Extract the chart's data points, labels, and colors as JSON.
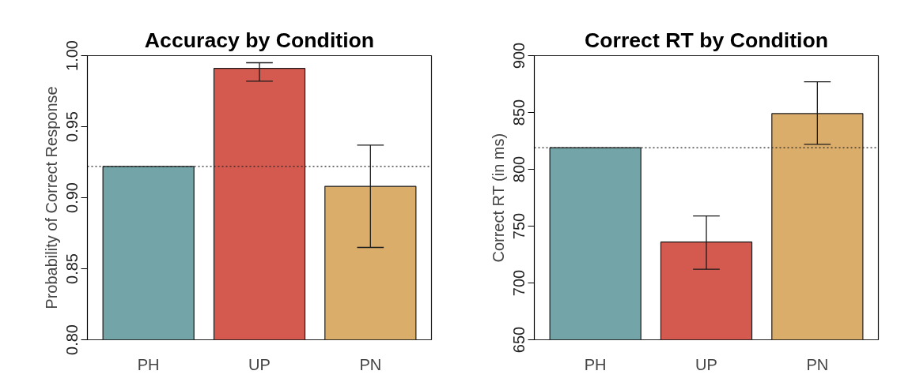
{
  "chart_data": [
    {
      "type": "bar",
      "title": "Accuracy by Condition",
      "ylabel": "Probability of Correct Response",
      "categories": [
        "PH",
        "UP",
        "PN"
      ],
      "values": [
        0.922,
        0.991,
        0.908
      ],
      "colors": [
        "#72a4a8",
        "#d45a50",
        "#dbad6a"
      ],
      "errors": [
        null,
        [
          0.982,
          0.995
        ],
        [
          0.865,
          0.937
        ]
      ],
      "ylim": [
        0.8,
        1.0
      ],
      "yticks": [
        {
          "value": 0.8,
          "label": "0.80"
        },
        {
          "value": 0.85,
          "label": "0.85"
        },
        {
          "value": 0.9,
          "label": "0.90"
        },
        {
          "value": 0.95,
          "label": "0.95"
        },
        {
          "value": 1.0,
          "label": "1.00"
        }
      ],
      "ref_lines": [
        {
          "axis": "y",
          "value": 0.922,
          "line_style": "dotted"
        }
      ],
      "grid": false
    },
    {
      "type": "bar",
      "title": "Correct RT by Condition",
      "ylabel": "Correct RT (in ms)",
      "categories": [
        "PH",
        "UP",
        "PN"
      ],
      "values": [
        819,
        736,
        849
      ],
      "colors": [
        "#72a4a8",
        "#d45a50",
        "#dbad6a"
      ],
      "errors": [
        null,
        [
          712,
          759
        ],
        [
          822,
          877
        ]
      ],
      "ylim": [
        650,
        900
      ],
      "yticks": [
        650,
        700,
        750,
        800,
        850,
        900
      ],
      "ref_lines": [
        {
          "axis": "y",
          "value": 819,
          "line_style": "dotted"
        }
      ],
      "grid": false
    }
  ]
}
